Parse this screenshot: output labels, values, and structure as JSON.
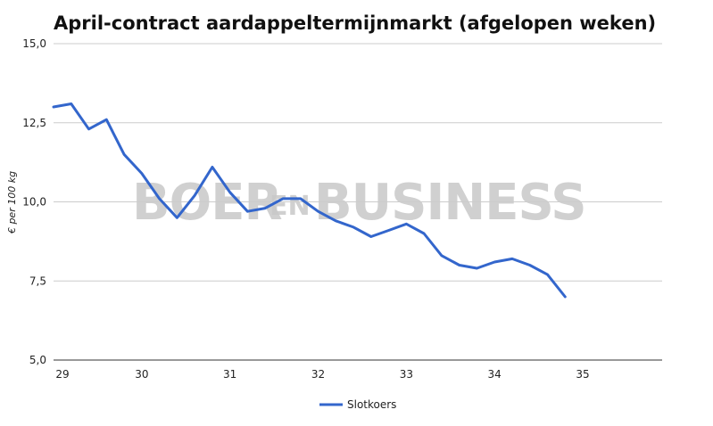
{
  "chart_data": {
    "type": "line",
    "title": "April-contract aardappeltermijnmarkt (afgelopen weken)",
    "xlabel": "",
    "ylabel": "€ per 100 kg",
    "x_ticks": [
      "29",
      "30",
      "31",
      "32",
      "33",
      "34",
      "35"
    ],
    "y_ticks": [
      "5,0",
      "7,5",
      "10,0",
      "12,5",
      "15,0"
    ],
    "xlim": [
      29,
      35.9
    ],
    "ylim": [
      5.0,
      15.0
    ],
    "grid": true,
    "legend": "bottom-center",
    "series": [
      {
        "name": "Slotkoers",
        "color": "#3366cc",
        "x": [
          29.0,
          29.2,
          29.4,
          29.6,
          29.8,
          30.0,
          30.2,
          30.4,
          30.6,
          30.8,
          31.0,
          31.2,
          31.4,
          31.6,
          31.8,
          32.0,
          32.2,
          32.4,
          32.6,
          32.8,
          33.0,
          33.2,
          33.4,
          33.6,
          33.8,
          34.0,
          34.2,
          34.4,
          34.6,
          34.8
        ],
        "values": [
          13.0,
          13.1,
          12.3,
          12.6,
          11.5,
          10.9,
          10.1,
          9.5,
          10.2,
          11.1,
          10.3,
          9.7,
          9.8,
          10.1,
          10.1,
          9.7,
          9.4,
          9.2,
          8.9,
          9.1,
          9.3,
          9.0,
          8.3,
          8.0,
          7.9,
          8.1,
          8.2,
          8.0,
          7.7,
          7.0
        ]
      }
    ]
  },
  "watermark": {
    "part1": "BOER",
    "part2": "EN",
    "part3": "BUSINESS"
  }
}
